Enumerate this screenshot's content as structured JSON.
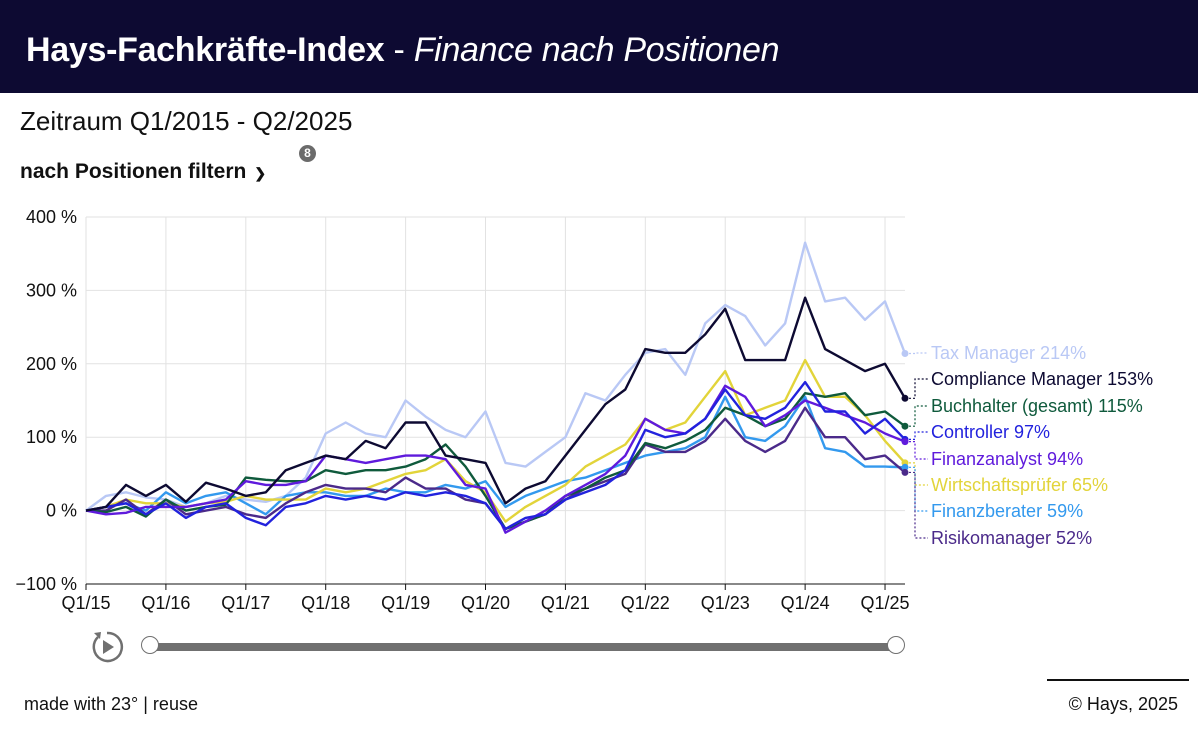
{
  "header": {
    "title": "Hays-Fachkräfte-Index",
    "separator": " - ",
    "subtitle": "Finance nach Positionen"
  },
  "period": "Zeitraum Q1/2015 - Q2/2025",
  "filter": {
    "label": "nach Positionen filtern",
    "chevron": "⌄",
    "badge": "8"
  },
  "colors": {
    "header_bg": "#0d0a32",
    "Tax Manager": "#b9c8f5",
    "Compliance Manager": "#0d0a32",
    "Buchhalter (gesamt)": "#0f5a3c",
    "Controller": "#2222dd",
    "Finanzanalyst": "#5f1adc",
    "Wirtschaftsprüfer": "#e2d43a",
    "Finanzberater": "#3399ee",
    "Risikomanager": "#4b2a8a"
  },
  "chart_data": {
    "type": "line",
    "ylim": [
      -100,
      400
    ],
    "yticks": [
      -100,
      0,
      100,
      200,
      300,
      400
    ],
    "ytick_labels": [
      "−100 %",
      "0 %",
      "100 %",
      "200 %",
      "300 %",
      "400 %"
    ],
    "xticks": [
      "Q1/15",
      "Q1/16",
      "Q1/17",
      "Q1/18",
      "Q1/19",
      "Q1/20",
      "Q1/21",
      "Q1/22",
      "Q1/23",
      "Q1/24",
      "Q1/25"
    ],
    "x": [
      "Q1/15",
      "Q2/15",
      "Q3/15",
      "Q4/15",
      "Q1/16",
      "Q2/16",
      "Q3/16",
      "Q4/16",
      "Q1/17",
      "Q2/17",
      "Q3/17",
      "Q4/17",
      "Q1/18",
      "Q2/18",
      "Q3/18",
      "Q4/18",
      "Q1/19",
      "Q2/19",
      "Q3/19",
      "Q4/19",
      "Q1/20",
      "Q2/20",
      "Q3/20",
      "Q4/20",
      "Q1/21",
      "Q2/21",
      "Q3/21",
      "Q4/21",
      "Q1/22",
      "Q2/22",
      "Q3/22",
      "Q4/22",
      "Q1/23",
      "Q2/23",
      "Q3/23",
      "Q4/23",
      "Q1/24",
      "Q2/24",
      "Q3/24",
      "Q4/24",
      "Q1/25",
      "Q2/25"
    ],
    "grid": true,
    "series": [
      {
        "name": "Tax Manager",
        "label": "Tax Manager 214%",
        "values": [
          0,
          20,
          25,
          18,
          15,
          5,
          10,
          20,
          15,
          12,
          20,
          45,
          105,
          120,
          105,
          100,
          150,
          128,
          110,
          100,
          135,
          65,
          60,
          80,
          100,
          160,
          150,
          185,
          215,
          220,
          185,
          255,
          280,
          265,
          225,
          255,
          365,
          285,
          290,
          260,
          285,
          214
        ]
      },
      {
        "name": "Compliance Manager",
        "label": "Compliance Manager 153%",
        "values": [
          0,
          5,
          35,
          20,
          35,
          12,
          38,
          30,
          20,
          25,
          55,
          65,
          75,
          70,
          95,
          85,
          120,
          120,
          75,
          70,
          65,
          10,
          30,
          40,
          75,
          110,
          145,
          165,
          220,
          215,
          215,
          240,
          275,
          205,
          205,
          205,
          290,
          220,
          205,
          190,
          200,
          153
        ]
      },
      {
        "name": "Buchhalter (gesamt)",
        "label": "Buchhalter (gesamt) 115%",
        "values": [
          0,
          -2,
          5,
          -8,
          15,
          0,
          5,
          8,
          45,
          42,
          40,
          40,
          55,
          50,
          55,
          55,
          60,
          70,
          90,
          60,
          20,
          -25,
          -15,
          -5,
          20,
          30,
          45,
          55,
          92,
          85,
          95,
          110,
          140,
          130,
          115,
          125,
          160,
          155,
          160,
          130,
          135,
          115
        ]
      },
      {
        "name": "Controller",
        "label": "Controller 97%",
        "values": [
          0,
          5,
          10,
          -5,
          10,
          -10,
          5,
          10,
          -10,
          -20,
          5,
          10,
          20,
          15,
          20,
          15,
          25,
          20,
          25,
          20,
          10,
          -25,
          -10,
          -5,
          15,
          25,
          35,
          55,
          110,
          100,
          105,
          125,
          165,
          130,
          125,
          140,
          175,
          135,
          135,
          105,
          125,
          97
        ]
      },
      {
        "name": "Finanzanalyst",
        "label": "Finanzanalyst 94%",
        "values": [
          0,
          -5,
          -3,
          5,
          5,
          5,
          10,
          15,
          40,
          35,
          35,
          40,
          75,
          70,
          65,
          70,
          75,
          75,
          70,
          35,
          30,
          -30,
          -15,
          0,
          20,
          35,
          50,
          75,
          125,
          110,
          105,
          125,
          170,
          155,
          115,
          130,
          150,
          140,
          130,
          120,
          105,
          94
        ]
      },
      {
        "name": "Wirtschaftsprüfer",
        "label": "Wirtschaftsprüfer 65%",
        "values": [
          0,
          5,
          15,
          10,
          10,
          5,
          10,
          12,
          20,
          15,
          15,
          15,
          30,
          25,
          30,
          40,
          50,
          55,
          70,
          40,
          25,
          -15,
          5,
          20,
          35,
          60,
          75,
          90,
          125,
          110,
          120,
          155,
          190,
          130,
          140,
          150,
          205,
          155,
          155,
          130,
          95,
          65
        ]
      },
      {
        "name": "Finanzberater",
        "label": "Finanzberater 59%",
        "values": [
          0,
          5,
          10,
          0,
          25,
          10,
          20,
          25,
          10,
          -5,
          20,
          25,
          25,
          20,
          20,
          30,
          25,
          25,
          35,
          30,
          40,
          5,
          20,
          30,
          40,
          45,
          55,
          65,
          75,
          80,
          85,
          100,
          155,
          100,
          95,
          115,
          155,
          85,
          80,
          60,
          60,
          59
        ]
      },
      {
        "name": "Risikomanager",
        "label": "Risikomanager 52%",
        "values": [
          0,
          0,
          15,
          -5,
          15,
          -5,
          0,
          5,
          -5,
          -10,
          10,
          25,
          35,
          30,
          30,
          25,
          45,
          30,
          30,
          15,
          10,
          -25,
          -15,
          -5,
          15,
          30,
          40,
          50,
          90,
          80,
          80,
          95,
          125,
          95,
          80,
          95,
          140,
          100,
          100,
          70,
          75,
          52
        ]
      }
    ]
  },
  "controls": {
    "play_icon": "play-circle-icon",
    "slider_start": 0,
    "slider_end": 1
  },
  "footer": {
    "made_with": "made with 23° | reuse",
    "copyright": "© Hays, 2025"
  }
}
